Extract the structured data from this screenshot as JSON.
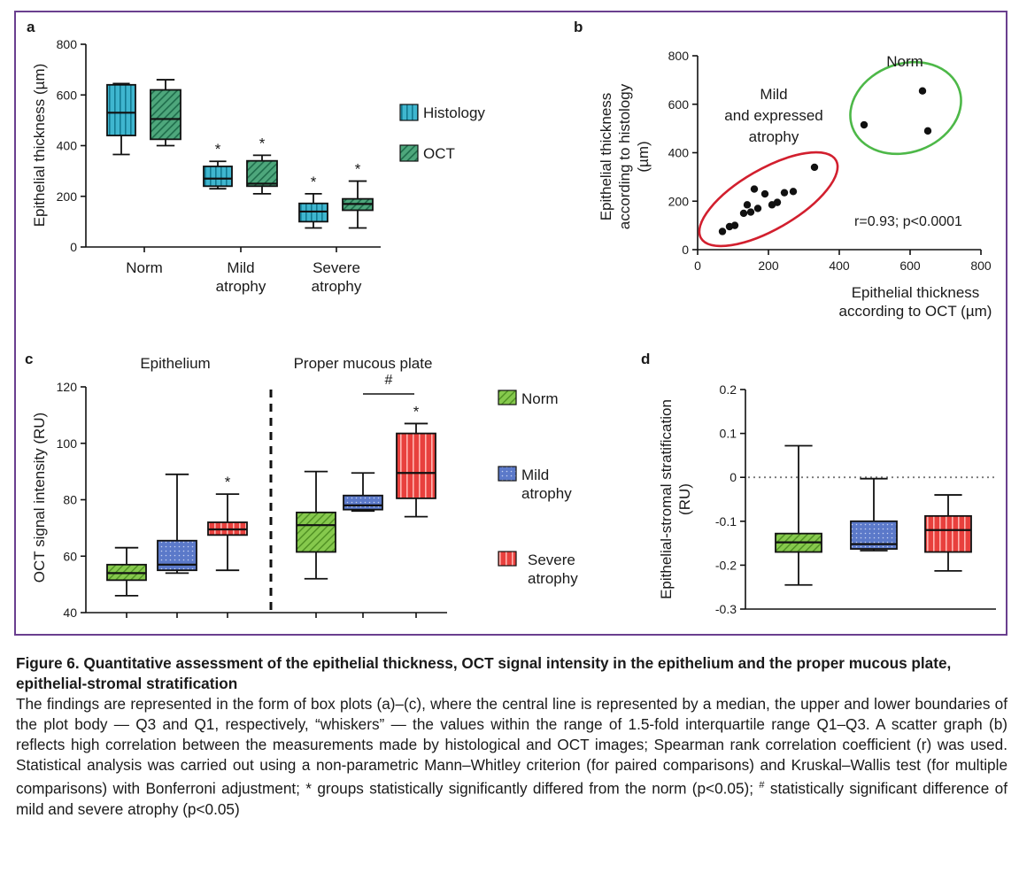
{
  "panels": {
    "a": {
      "letter": "a"
    },
    "b": {
      "letter": "b"
    },
    "c": {
      "letter": "c"
    },
    "d": {
      "letter": "d"
    }
  },
  "colors": {
    "frame": "#6a3f8f",
    "histology": "#3fb6cf",
    "oct": "#4ea77c",
    "norm": "#86c94d",
    "mild": "#5b79c9",
    "severe": "#e8403d",
    "ellipse_red": "#d21f2e",
    "ellipse_green": "#4db848"
  },
  "chart_data": [
    {
      "panel": "a",
      "type": "box",
      "ylabel": "Epithelial thickness (µm)",
      "ylim": [
        0,
        800
      ],
      "yticks": [
        "0",
        "200",
        "400",
        "600",
        "800"
      ],
      "categories": [
        "Norm",
        "Mild|atrophy",
        "Severe|atrophy"
      ],
      "legend": [
        "Histology",
        "OCT"
      ],
      "series": [
        {
          "name": "Histology",
          "boxes": [
            {
              "min": 365,
              "q1": 440,
              "median": 530,
              "q3": 640,
              "max": 645,
              "mark": ""
            },
            {
              "min": 230,
              "q1": 240,
              "median": 270,
              "q3": 318,
              "max": 338,
              "mark": "*"
            },
            {
              "min": 75,
              "q1": 100,
              "median": 140,
              "q3": 172,
              "max": 210,
              "mark": "*"
            }
          ]
        },
        {
          "name": "OCT",
          "boxes": [
            {
              "min": 400,
              "q1": 425,
              "median": 505,
              "q3": 620,
              "max": 660,
              "mark": ""
            },
            {
              "min": 210,
              "q1": 240,
              "median": 250,
              "q3": 340,
              "max": 362,
              "mark": "*"
            },
            {
              "min": 75,
              "q1": 145,
              "median": 170,
              "q3": 190,
              "max": 260,
              "mark": "*"
            }
          ]
        }
      ]
    },
    {
      "panel": "b",
      "type": "scatter",
      "xlabel": "Epithelial thickness|according to OCT (µm)",
      "ylabel": "Epithelial thickness|according to histology|(µm)",
      "xlim": [
        0,
        800
      ],
      "ylim": [
        0,
        800
      ],
      "xticks": [
        "0",
        "200",
        "400",
        "600",
        "800"
      ],
      "yticks": [
        "0",
        "200",
        "400",
        "600",
        "800"
      ],
      "annotation": "r=0.93; p<0.0001",
      "groups": [
        {
          "label": "Mild|and expressed|atrophy",
          "points": [
            [
              70,
              75
            ],
            [
              90,
              95
            ],
            [
              105,
              100
            ],
            [
              130,
              150
            ],
            [
              140,
              185
            ],
            [
              150,
              155
            ],
            [
              160,
              250
            ],
            [
              170,
              170
            ],
            [
              190,
              230
            ],
            [
              210,
              185
            ],
            [
              225,
              195
            ],
            [
              245,
              235
            ],
            [
              270,
              240
            ],
            [
              330,
              340
            ]
          ]
        },
        {
          "label": "Norm",
          "points": [
            [
              470,
              515
            ],
            [
              635,
              655
            ],
            [
              650,
              490
            ]
          ]
        }
      ]
    },
    {
      "panel": "c",
      "type": "box",
      "ylabel": "OCT signal intensity (RU)",
      "ylim": [
        40,
        120
      ],
      "yticks": [
        "40",
        "60",
        "80",
        "100",
        "120"
      ],
      "sections": [
        "Epithelium",
        "Proper mucous plate"
      ],
      "legend": [
        "Norm",
        "Mild|atrophy",
        "Severe|atrophy"
      ],
      "significance": "#",
      "groups": [
        {
          "section": "Epithelium",
          "boxes": [
            {
              "series": "Norm",
              "min": 46,
              "q1": 51.5,
              "median": 54,
              "q3": 57,
              "max": 63,
              "mark": ""
            },
            {
              "series": "Mild atrophy",
              "min": 54,
              "q1": 55,
              "median": 57,
              "q3": 65.5,
              "max": 89,
              "mark": ""
            },
            {
              "series": "Severe atrophy",
              "min": 55,
              "q1": 67.5,
              "median": 69.5,
              "q3": 72,
              "max": 82,
              "mark": "*"
            }
          ]
        },
        {
          "section": "Proper mucous plate",
          "boxes": [
            {
              "series": "Norm",
              "min": 52,
              "q1": 61.5,
              "median": 71,
              "q3": 75.5,
              "max": 90,
              "mark": ""
            },
            {
              "series": "Mild atrophy",
              "min": 76,
              "q1": 76.5,
              "median": 78,
              "q3": 81.5,
              "max": 89.5,
              "mark": ""
            },
            {
              "series": "Severe atrophy",
              "min": 74,
              "q1": 80.5,
              "median": 89.5,
              "q3": 103.5,
              "max": 107,
              "mark": "*"
            }
          ]
        }
      ]
    },
    {
      "panel": "d",
      "type": "box",
      "ylabel": "Epithelial-stromal stratification|(RU)",
      "ylim": [
        -0.3,
        0.2
      ],
      "yticks": [
        "0.2",
        "0.1",
        "0",
        "-0.1",
        "-0.2",
        "-0.3"
      ],
      "reference_line": 0,
      "boxes": [
        {
          "series": "Norm",
          "min": -0.245,
          "q1": -0.17,
          "median": -0.148,
          "q3": -0.128,
          "max": 0.072,
          "mark": ""
        },
        {
          "series": "Mild atrophy",
          "min": -0.167,
          "q1": -0.163,
          "median": -0.152,
          "q3": -0.1,
          "max": -0.003,
          "mark": ""
        },
        {
          "series": "Severe atrophy",
          "min": -0.213,
          "q1": -0.17,
          "median": -0.12,
          "q3": -0.088,
          "max": -0.04,
          "mark": ""
        }
      ]
    }
  ],
  "caption": {
    "title": "Figure 6. Quantitative assessment of the epithelial thickness, OCT signal intensity in the epithelium and the proper mucous plate, epithelial-stromal stratification",
    "body_1": "The findings are represented in the form of box plots (a)–(c), where the central line is represented by a median, the upper and lower boundaries of the plot body — Q3 and Q1, respectively, “whiskers” — the values within the range of 1.5-fold interquartile range Q1–Q3. A scatter graph (b) reflects high correlation between the measurements made by histological and OCT images; Spearman rank correlation coefficient (r) was used. Statistical analysis was carried out using a non-parametric Mann–Whitley criterion (for paired comparisons) and Kruskal–Wallis test (for multiple comparisons) with Bonferroni adjustment; * groups statistically significantly differed from the norm (p<0.05); ",
    "hash_mark": "#",
    "body_2": " statistically significant difference of mild and severe atrophy (p<0.05)"
  }
}
